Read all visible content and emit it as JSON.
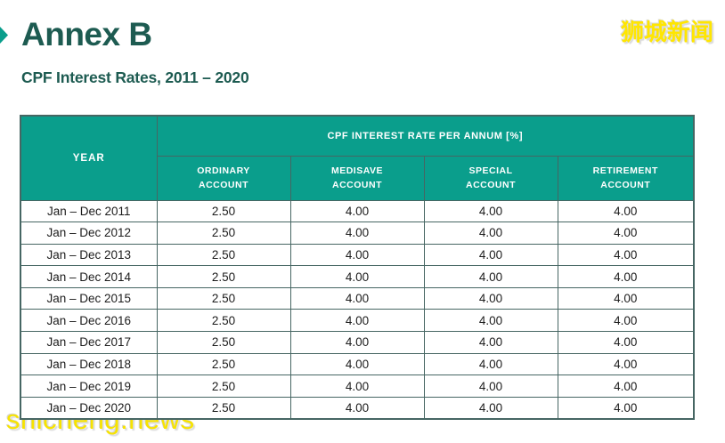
{
  "page": {
    "title": "Annex B",
    "subtitle": "CPF Interest Rates, 2011 – 2020",
    "watermark_top": "狮城新闻",
    "watermark_bottom": "shicheng.news"
  },
  "colors": {
    "header_teal": "#0a9e8c",
    "title_teal": "#1d5b51",
    "border_col": "#466663",
    "watermark_yellow": "#ffe600"
  },
  "table": {
    "year_header": "YEAR",
    "group_header": "CPF INTEREST RATE PER ANNUM [%]",
    "columns": [
      "ORDINARY\nACCOUNT",
      "MEDISAVE\nACCOUNT",
      "SPECIAL\nACCOUNT",
      "RETIREMENT\nACCOUNT"
    ],
    "rows": [
      {
        "year": "Jan – Dec 2011",
        "values": [
          "2.50",
          "4.00",
          "4.00",
          "4.00"
        ]
      },
      {
        "year": "Jan – Dec 2012",
        "values": [
          "2.50",
          "4.00",
          "4.00",
          "4.00"
        ]
      },
      {
        "year": "Jan – Dec 2013",
        "values": [
          "2.50",
          "4.00",
          "4.00",
          "4.00"
        ]
      },
      {
        "year": "Jan – Dec 2014",
        "values": [
          "2.50",
          "4.00",
          "4.00",
          "4.00"
        ]
      },
      {
        "year": "Jan – Dec 2015",
        "values": [
          "2.50",
          "4.00",
          "4.00",
          "4.00"
        ]
      },
      {
        "year": "Jan – Dec 2016",
        "values": [
          "2.50",
          "4.00",
          "4.00",
          "4.00"
        ]
      },
      {
        "year": "Jan – Dec 2017",
        "values": [
          "2.50",
          "4.00",
          "4.00",
          "4.00"
        ]
      },
      {
        "year": "Jan – Dec 2018",
        "values": [
          "2.50",
          "4.00",
          "4.00",
          "4.00"
        ]
      },
      {
        "year": "Jan – Dec 2019",
        "values": [
          "2.50",
          "4.00",
          "4.00",
          "4.00"
        ]
      },
      {
        "year": "Jan – Dec 2020",
        "values": [
          "2.50",
          "4.00",
          "4.00",
          "4.00"
        ]
      }
    ]
  }
}
